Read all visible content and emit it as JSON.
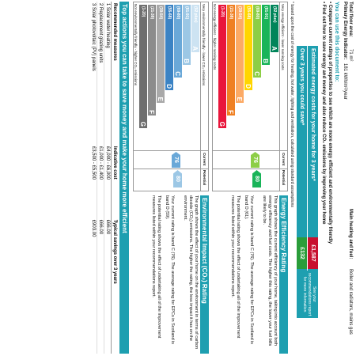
{
  "header": {
    "floor_area_label": "Total floor area:",
    "floor_area_value": "71 m²",
    "indicator_label": "Primary Energy Indicator:",
    "indicator_value": "181 kWh/m²/year",
    "heating_label": "Main heating and fuel:",
    "heating_value": "Boiler and radiators, mains gas"
  },
  "use_doc": {
    "title": "You can use this document to:",
    "bullet1": "Compare current ratings of properties to see which are more energy efficient and environmentally friendly",
    "bullet2": "Find out how to save energy and money and also reduce CO₂ emissions by improving your home"
  },
  "costs": {
    "row1_label": "Estimated energy costs for your home for 3 years*",
    "row1_value": "£1,587",
    "row2_label": "Over 3 years you could save*",
    "row2_value": "£132",
    "see_recs": "See your recommendations report for more information",
    "footnote": "* based upon the cost of energy for heating, hot water, lighting and ventilation, calculated using standard assumptions"
  },
  "energy_chart": {
    "col_current": "Current",
    "col_potential": "Potential",
    "top_caption": "Very energy efficient - lower running costs",
    "bottom_caption": "Not energy efficient - higher running costs",
    "bands": [
      {
        "range": "(92 plus)",
        "letter": "A",
        "color": "#00855a"
      },
      {
        "range": "(81-91)",
        "letter": "B",
        "color": "#19b459"
      },
      {
        "range": "(69-80)",
        "letter": "C",
        "color": "#8dce46"
      },
      {
        "range": "(55-68)",
        "letter": "D",
        "color": "#ffd500"
      },
      {
        "range": "(39-54)",
        "letter": "E",
        "color": "#fcaa65"
      },
      {
        "range": "(21-38)",
        "letter": "F",
        "color": "#ef8023"
      },
      {
        "range": "(1-20)",
        "letter": "G",
        "color": "#e9153b"
      }
    ],
    "current": "76",
    "potential": "80"
  },
  "env_chart": {
    "col_current": "Current",
    "col_potential": "Potential",
    "top_caption": "Very environmentally friendly - lower CO₂ emissions",
    "bottom_caption": "Not environmentally friendly - higher CO₂ emissions",
    "bands": [
      {
        "range": "(92 plus)",
        "letter": "A",
        "color": "#cde3f2"
      },
      {
        "range": "(81-91)",
        "letter": "B",
        "color": "#9cc7e5"
      },
      {
        "range": "(69-80)",
        "letter": "C",
        "color": "#6aa8d8"
      },
      {
        "range": "(55-68)",
        "letter": "D",
        "color": "#3b83c4"
      },
      {
        "range": "(39-54)",
        "letter": "E",
        "color": "#a9a9a9"
      },
      {
        "range": "(21-38)",
        "letter": "F",
        "color": "#8c8c8c"
      },
      {
        "range": "(1-20)",
        "letter": "G",
        "color": "#6e6e6e"
      }
    ],
    "current": "76",
    "potential": "80"
  },
  "ee_text": {
    "title": "Energy Efficiency Rating",
    "p1": "This graph shows the current efficiency of your home, taking into account both energy efficiency and fuel costs. The higher this rating, the lower your fuel bills are likely to be.",
    "p2": "Your current rating is band C (76). The average rating for EPCs in Scotland is band D (61).",
    "p3": "The potential rating shows the effect of undertaking all of the improvement measures listed within your recommendations report."
  },
  "ei_text": {
    "title": "Environmental Impact (CO₂) Rating",
    "p1": "The graph shows the effect of your home on the environment in terms of carbon dioxide (CO₂) emissions. The higher the rating, the less impact it has on the environment.",
    "p2": "Your current rating is band C (76). The average rating for EPCs in Scotland is band D (59).",
    "p3": "The potential rating shows the effect of undertaking all of the improvement measures listed within your recommendations report."
  },
  "actions": {
    "title": "Top actions you can take to save money and make your home more efficient",
    "headers": [
      "Recommended measures",
      "Indicative cost",
      "Typical savings over 3 years"
    ],
    "rows": [
      [
        "1 Solar water heating",
        "£4,000 - £6,000",
        "£66.00"
      ],
      [
        "2 Replacement glazing units",
        "£1,000 - £1,400",
        "£66.00"
      ],
      [
        "3 Solar photovoltaic (PV) panels",
        "£3,500 - £5,500",
        "£903.00"
      ]
    ]
  }
}
